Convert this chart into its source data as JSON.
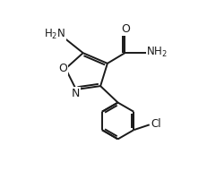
{
  "background_color": "#ffffff",
  "line_color": "#1a1a1a",
  "line_width": 1.4,
  "font_size": 8.5,
  "figsize": [
    2.32,
    2.0
  ],
  "dpi": 100,
  "xlim": [
    0,
    10
  ],
  "ylim": [
    0,
    10
  ]
}
